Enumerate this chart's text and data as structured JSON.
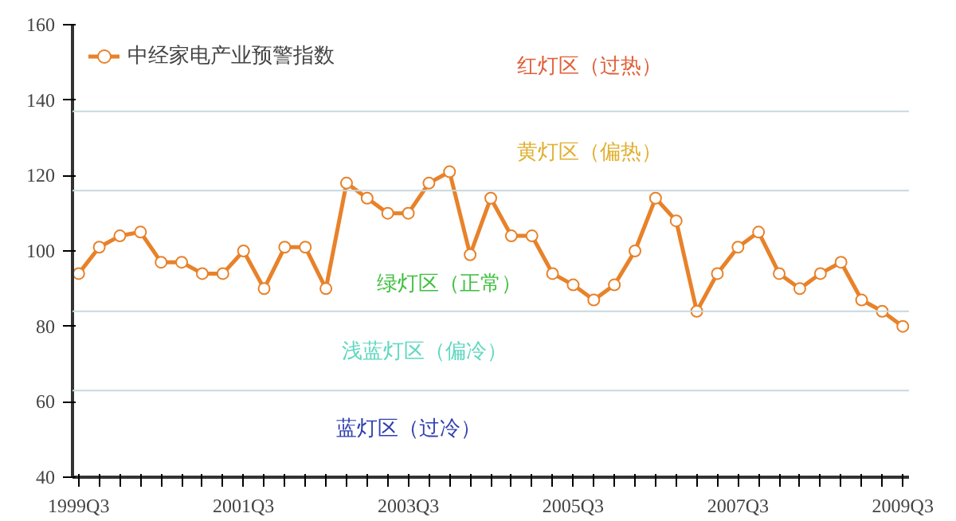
{
  "chart_data": {
    "type": "line",
    "categories": [
      "1999Q3",
      null,
      null,
      null,
      null,
      null,
      null,
      null,
      "2001Q3",
      null,
      null,
      null,
      null,
      null,
      null,
      null,
      "2003Q3",
      null,
      null,
      null,
      null,
      null,
      null,
      null,
      "2005Q3",
      null,
      null,
      null,
      null,
      null,
      null,
      null,
      "2007Q3",
      null,
      null,
      null,
      null,
      null,
      null,
      null,
      "2009Q3"
    ],
    "series": [
      {
        "name": "中经家电产业预警指数",
        "color": "#e8822a",
        "values": [
          94,
          101,
          104,
          105,
          97,
          97,
          94,
          94,
          100,
          90,
          101,
          101,
          90,
          118,
          114,
          110,
          110,
          118,
          121,
          99,
          114,
          104,
          104,
          94,
          91,
          87,
          91,
          100,
          114,
          108,
          84,
          94,
          101,
          105,
          94,
          90,
          94,
          97,
          87,
          84,
          80
        ]
      }
    ],
    "ylim": [
      40,
      160
    ],
    "yticks": [
      40,
      60,
      80,
      100,
      120,
      140,
      160
    ],
    "ref_lines": [
      {
        "axis": "y",
        "value": 137,
        "color": "#c8d8dc"
      },
      {
        "axis": "y",
        "value": 116,
        "color": "#c8d8dc"
      },
      {
        "axis": "y",
        "value": 84,
        "color": "#c8d8dc"
      },
      {
        "axis": "y",
        "value": 63,
        "color": "#c8d8dc"
      }
    ],
    "annotations": [
      "红灯区（过热）",
      "黄灯区（偏热）",
      "绿灯区（正常）",
      "浅蓝灯区（偏冷）",
      "蓝灯区（过冷）"
    ],
    "grid": false,
    "legend": "top left",
    "marker": "circle",
    "line_style": "solid"
  }
}
